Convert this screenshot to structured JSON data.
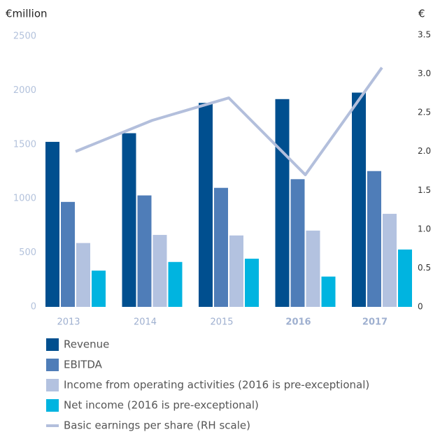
{
  "chart_data": {
    "type": "bar",
    "ylabel": "€million",
    "y2label": "€",
    "categories": [
      "2013",
      "2014",
      "2015",
      "2016",
      "2017"
    ],
    "series": [
      {
        "name": "Revenue",
        "color": "#004f8f",
        "values": [
          1525,
          1605,
          1885,
          1920,
          1980
        ]
      },
      {
        "name": "EBITDA",
        "color": "#4f7db8",
        "values": [
          970,
          1030,
          1100,
          1180,
          1255
        ]
      },
      {
        "name": "Income from operating activities (2016 is pre-exceptional)",
        "color": "#b3c2e0",
        "values": [
          590,
          665,
          660,
          705,
          860
        ]
      },
      {
        "name": "Net income (2016 is pre-exceptional)",
        "color": "#00b4e0",
        "values": [
          335,
          415,
          445,
          280,
          530
        ]
      },
      {
        "name": "Basic earnings per share (RH scale)",
        "color": "#b3bfdc",
        "type": "line",
        "axis": "y2",
        "values": [
          2.0,
          2.4,
          2.69,
          1.7,
          3.08
        ]
      }
    ],
    "ylim": [
      0,
      2500
    ],
    "yticks": [
      0,
      500,
      1000,
      1500,
      2000,
      2500
    ],
    "y2lim": [
      0,
      3.5
    ],
    "y2ticks": [
      0,
      {
        "value": 0.5,
        "label": "0.5"
      },
      {
        "value": 1,
        "label": "1.0"
      },
      {
        "value": 1.5,
        "label": "1.5"
      },
      {
        "value": 2,
        "label": "2.0"
      },
      {
        "value": 2.5,
        "label": "2.5"
      },
      {
        "value": 3,
        "label": "3.0"
      },
      {
        "value": 3.5,
        "label": "3.5"
      }
    ]
  }
}
